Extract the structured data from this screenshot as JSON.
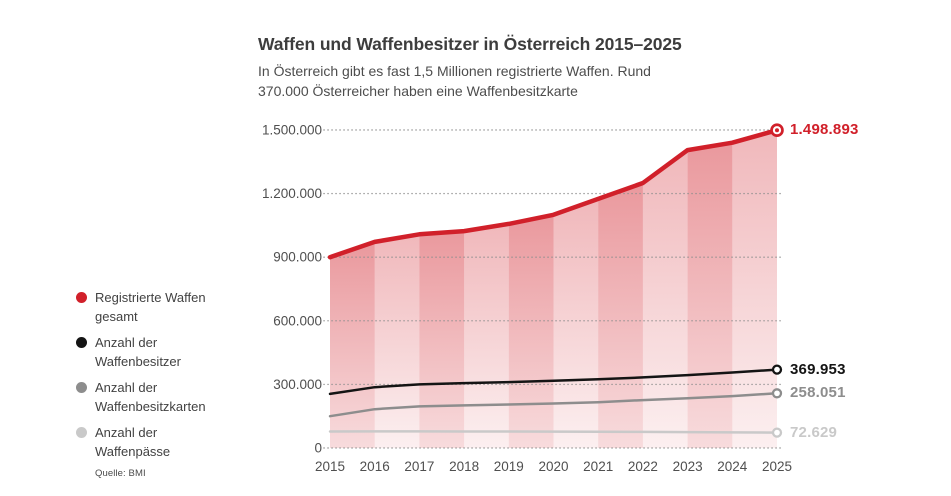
{
  "header": {
    "title": "Waffen und Waffenbesitzer in Österreich 2015–2025",
    "subtitle_line1": "In Österreich gibt es fast 1,5 Millionen registrierte Waffen. Rund",
    "subtitle_line2": "370.000 Österreicher haben eine Waffenbesitzkarte"
  },
  "legend": {
    "items": [
      {
        "id": "registrierte-waffen",
        "color": "#d1202a",
        "line1": "Registrierte Waffen",
        "line2": "gesamt"
      },
      {
        "id": "waffenbesitzer",
        "color": "#141414",
        "line1": "Anzahl der",
        "line2": "Waffenbesitzer"
      },
      {
        "id": "waffenbesitzkarten",
        "color": "#8d8d8d",
        "line1": "Anzahl der",
        "line2": "Waffenbesitzkarten"
      },
      {
        "id": "waffenpaesse",
        "color": "#c9c9c9",
        "line1": "Anzahl der",
        "line2": "Waffenpässe"
      }
    ],
    "source": "Quelle: BMI"
  },
  "chart_data": {
    "type": "line",
    "title": "Waffen und Waffenbesitzer in Österreich 2015–2025",
    "x": [
      "2015",
      "2016",
      "2017",
      "2018",
      "2019",
      "2020",
      "2021",
      "2022",
      "2023",
      "2024",
      "2025"
    ],
    "series": [
      {
        "name": "Registrierte Waffen gesamt",
        "color": "#d1202a",
        "style": "thick line with shaded area fill and vertical year bands",
        "values": [
          900000,
          972000,
          1008000,
          1023000,
          1057000,
          1100000,
          1175000,
          1250000,
          1405000,
          1440000,
          1498893
        ],
        "end_label": "1.498.893"
      },
      {
        "name": "Anzahl der Waffenbesitzer",
        "color": "#141414",
        "style": "line",
        "values": [
          255000,
          287000,
          300000,
          306000,
          311000,
          317000,
          324000,
          333000,
          344000,
          356000,
          369953
        ],
        "end_label": "369.953"
      },
      {
        "name": "Anzahl der Waffenbesitzkarten",
        "color": "#8d8d8d",
        "style": "line",
        "values": [
          150000,
          183000,
          196000,
          201000,
          205000,
          210000,
          216000,
          226000,
          235000,
          245000,
          258051
        ],
        "end_label": "258.051"
      },
      {
        "name": "Anzahl der Waffenpässe",
        "color": "#c9c9c9",
        "style": "line",
        "values": [
          78000,
          78500,
          78500,
          78000,
          78000,
          77500,
          77000,
          76000,
          75000,
          73800,
          72629
        ],
        "end_label": "72.629"
      }
    ],
    "y_ticks": [
      {
        "value": 1500000,
        "label": "1.500.000"
      },
      {
        "value": 1200000,
        "label": "1.200.000"
      },
      {
        "value": 900000,
        "label": "900.000"
      },
      {
        "value": 600000,
        "label": "600.000"
      },
      {
        "value": 300000,
        "label": "300.000"
      },
      {
        "value": 0,
        "label": "0"
      }
    ],
    "ylim": [
      0,
      1500000
    ],
    "grid": "dotted horizontal gridlines",
    "legend_position": "left",
    "background_stripes": "alternating darker/lighter vertical one-year bands inside red area, fading downward"
  }
}
